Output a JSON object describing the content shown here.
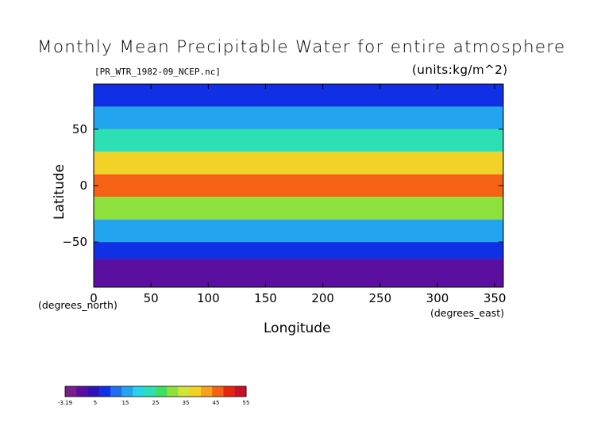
{
  "chart_data": {
    "type": "heatmap",
    "title": "Monthly Mean Precipitable Water for entire atmosphere",
    "source_file": "[PR_WTR_1982-09_NCEP.nc]",
    "units": "(units:kg/m^2)",
    "xlabel": "Longitude",
    "ylabel": "Latitude",
    "x_unit": "(degrees_east)",
    "y_unit": "(degrees_north)",
    "xlim": [
      0,
      357.5
    ],
    "ylim": [
      -90,
      90
    ],
    "xticks": [
      0,
      50,
      100,
      150,
      200,
      250,
      300,
      350
    ],
    "yticks": [
      -50,
      0,
      50
    ],
    "colorbar": {
      "min": -3.19,
      "max": 55,
      "tick_labels": [
        "-3.19",
        "5",
        "15",
        "25",
        "35",
        "45",
        "55"
      ],
      "colors": [
        "#7a1f8c",
        "#5a0fa0",
        "#2d13b8",
        "#1030e6",
        "#1f6df0",
        "#22a5ee",
        "#26d3e8",
        "#2de0b4",
        "#3ee062",
        "#8ee03c",
        "#d2e537",
        "#f2d226",
        "#f7a11b",
        "#f56215",
        "#e82311",
        "#c8102b"
      ]
    },
    "data_description_by_latitude": [
      {
        "lat_band": [
          70,
          90
        ],
        "value": 8
      },
      {
        "lat_band": [
          50,
          70
        ],
        "value": 15
      },
      {
        "lat_band": [
          30,
          50
        ],
        "value": 25
      },
      {
        "lat_band": [
          10,
          30
        ],
        "value": 40
      },
      {
        "lat_band": [
          -10,
          10
        ],
        "value": 45
      },
      {
        "lat_band": [
          -30,
          -10
        ],
        "value": 30
      },
      {
        "lat_band": [
          -50,
          -30
        ],
        "value": 15
      },
      {
        "lat_band": [
          -65,
          -50
        ],
        "value": 8
      },
      {
        "lat_band": [
          -90,
          -65
        ],
        "value": 1
      }
    ],
    "grid": false,
    "legend_placement": "bottom-left"
  }
}
